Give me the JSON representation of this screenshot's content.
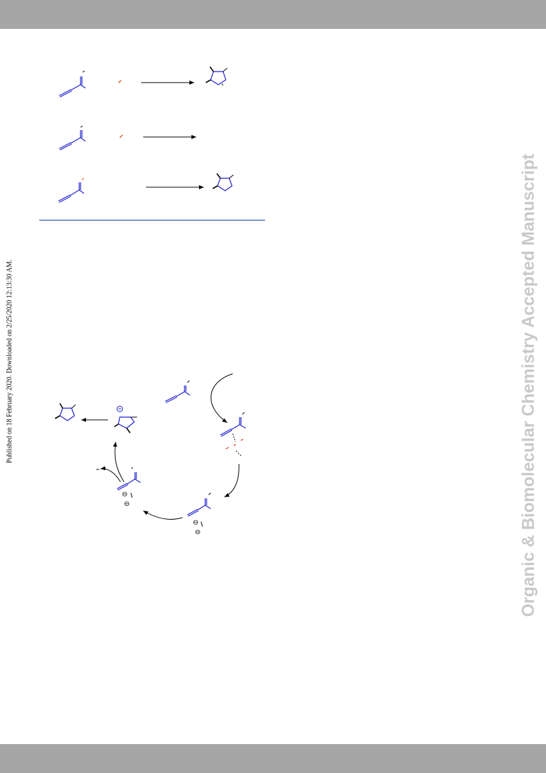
{
  "header": {
    "color": "#a6a6a6"
  },
  "footer": {
    "color": "#a6a6a6"
  },
  "watermark": {
    "text": "Organic & Biomolecular Chemistry Accepted Manuscript",
    "color": "#c9c9c9"
  },
  "publication_note": {
    "text": "Published on 18 February 2020. Downloaded on 2/25/2020 12:13:30 AM."
  },
  "scheme_colors": {
    "substrate": "#1f1fd0",
    "reagent": "#e03010",
    "rule": "#2f57b0",
    "arrows": "#000000"
  },
  "catalytic_cycle": {
    "charge_symbols": [
      "⊖",
      "⊖",
      "⊖",
      "⊖"
    ]
  }
}
